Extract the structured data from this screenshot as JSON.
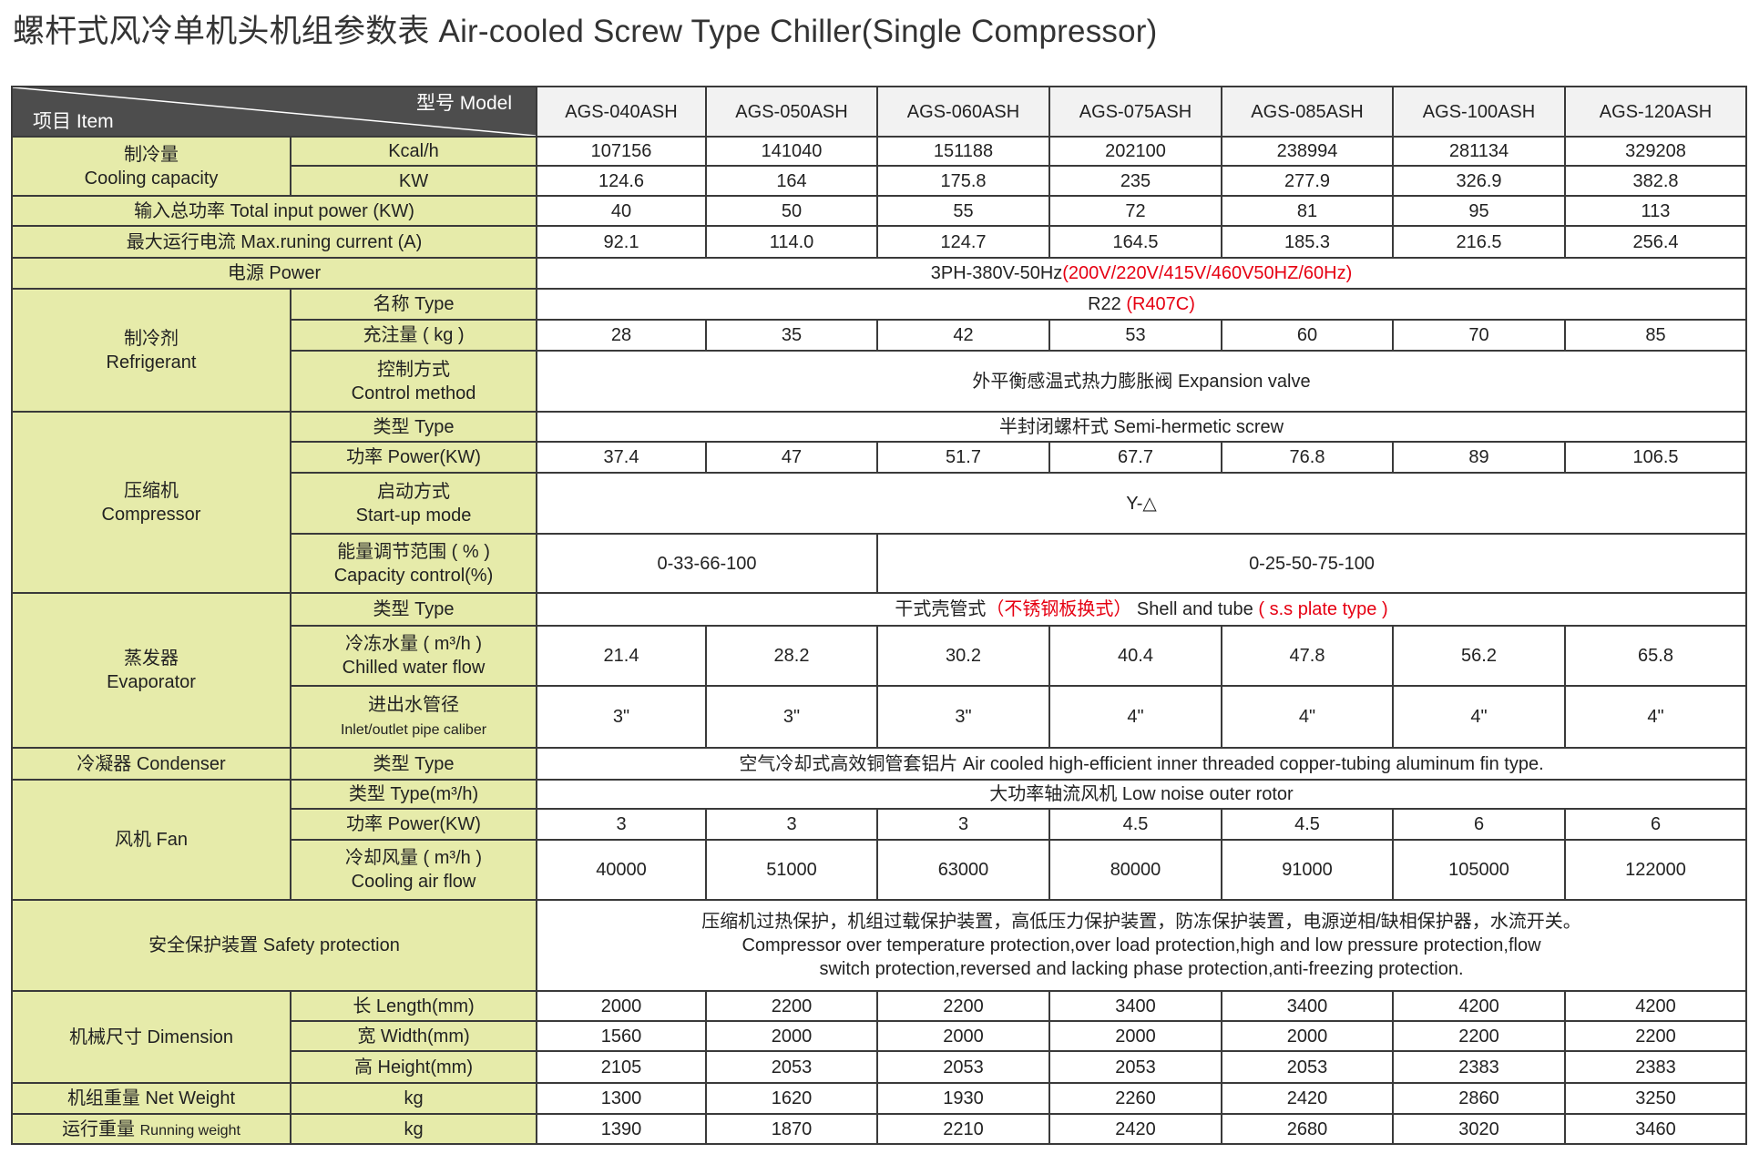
{
  "title": "螺杆式风冷单机头机组参数表 Air-cooled Screw Type Chiller(Single Compressor)",
  "colors": {
    "label_bg": "#e6ebaa",
    "header_bg": "#4d4d4d",
    "highlight": "#e60012"
  },
  "header": {
    "model_label": "型号  Model",
    "item_label": "项目  Item"
  },
  "models": [
    "AGS-040ASH",
    "AGS-050ASH",
    "AGS-060ASH",
    "AGS-075ASH",
    "AGS-085ASH",
    "AGS-100ASH",
    "AGS-120ASH"
  ],
  "sections": [
    {
      "label": "制冷量\nCooling capacity",
      "rows": [
        {
          "param": "Kcal/h",
          "values": [
            "107156",
            "141040",
            "151188",
            "202100",
            "238994",
            "281134",
            "329208"
          ]
        },
        {
          "param": "KW",
          "values": [
            "124.6",
            "164",
            "175.8",
            "235",
            "277.9",
            "326.9",
            "382.8"
          ]
        }
      ]
    },
    {
      "label": "输入总功率  Total input power (KW)",
      "values": [
        "40",
        "50",
        "55",
        "72",
        "81",
        "95",
        "113"
      ]
    },
    {
      "label": "最大运行电流  Max.runing current (A)",
      "values": [
        "92.1",
        "114.0",
        "124.7",
        "164.5",
        "185.3",
        "216.5",
        "256.4"
      ]
    },
    {
      "label": "电源  Power",
      "values": [
        [
          {
            "text": "3PH-380V-50Hz"
          },
          {
            "text": "(200V/220V/415V/460V50HZ/60Hz)",
            "red": true
          }
        ]
      ]
    },
    {
      "label": "制冷剂\nRefrigerant",
      "rows": [
        {
          "param": "名称  Type",
          "values": [
            [
              {
                "text": "R22 "
              },
              {
                "text": "(R407C)",
                "red": true
              }
            ]
          ]
        },
        {
          "param": "充注量 ( kg )",
          "values": [
            "28",
            "35",
            "42",
            "53",
            "60",
            "70",
            "85"
          ]
        },
        {
          "param": "控制方式\nControl method",
          "values": [
            "外平衡感温式热力膨胀阀  Expansion valve"
          ]
        }
      ]
    },
    {
      "label": "压缩机\nCompressor",
      "rows": [
        {
          "param": "类型  Type",
          "values": [
            "半封闭螺杆式  Semi-hermetic screw"
          ]
        },
        {
          "param": "功率  Power(KW)",
          "values": [
            "37.4",
            "47",
            "51.7",
            "67.7",
            "76.8",
            "89",
            "106.5"
          ]
        },
        {
          "param": "启动方式\nStart-up mode",
          "values": [
            "Y-△"
          ]
        },
        {
          "param": "能量调节范围 ( % )\nCapacity control(%)",
          "values": [
            "0-33-66-100",
            "0-25-50-75-100"
          ]
        }
      ]
    },
    {
      "label": "蒸发器\nEvaporator",
      "rows": [
        {
          "param": "类型  Type",
          "values": [
            [
              {
                "text": "干式壳管式"
              },
              {
                "text": "（不锈钢板换式）",
                "red": true
              },
              {
                "text": "  Shell and tube "
              },
              {
                "text": "( s.s plate type )",
                "red": true
              }
            ]
          ]
        },
        {
          "param": "冷冻水量 ( m³/h )\nChilled water flow",
          "values": [
            "21.4",
            "28.2",
            "30.2",
            "40.4",
            "47.8",
            "56.2",
            "65.8"
          ]
        },
        {
          "param": [
            {
              "text": "进出水管径\n"
            },
            {
              "text": "Inlet/outlet pipe caliber",
              "small": true
            }
          ],
          "values": [
            "3\"",
            "3\"",
            "3\"",
            "4\"",
            "4\"",
            "4\"",
            "4\""
          ]
        }
      ]
    },
    {
      "label": "冷凝器  Condenser",
      "rows": [
        {
          "param": "类型  Type",
          "values": [
            "空气冷却式高效铜管套铝片  Air cooled high-efficient inner threaded copper-tubing aluminum fin type."
          ]
        }
      ]
    },
    {
      "label": "风机  Fan",
      "rows": [
        {
          "param": "类型  Type(m³/h)",
          "values": [
            "大功率轴流风机  Low noise outer rotor"
          ]
        },
        {
          "param": "功率  Power(KW)",
          "values": [
            "3",
            "3",
            "3",
            "4.5",
            "4.5",
            "6",
            "6"
          ]
        },
        {
          "param": "冷却风量 ( m³/h )\nCooling air flow",
          "values": [
            "40000",
            "51000",
            "63000",
            "80000",
            "91000",
            "105000",
            "122000"
          ]
        }
      ]
    },
    {
      "label": "安全保护装置  Safety protection",
      "values": [
        "压缩机过热保护，机组过载保护装置，高低压力保护装置，防冻保护装置，电源逆相/缺相保护器，水流开关。\nCompressor over temperature protection,over load protection,high and low pressure protection,flow\nswitch protection,reversed and lacking phase protection,anti-freezing protection."
      ]
    },
    {
      "label": "机械尺寸  Dimension",
      "rows": [
        {
          "param": "长  Length(mm)",
          "values": [
            "2000",
            "2200",
            "2200",
            "3400",
            "3400",
            "4200",
            "4200"
          ]
        },
        {
          "param": "宽  Width(mm)",
          "values": [
            "1560",
            "2000",
            "2000",
            "2000",
            "2000",
            "2200",
            "2200"
          ]
        },
        {
          "param": "高  Height(mm)",
          "values": [
            "2105",
            "2053",
            "2053",
            "2053",
            "2053",
            "2383",
            "2383"
          ]
        }
      ]
    },
    {
      "label": "机组重量  Net Weight",
      "rows": [
        {
          "param": "kg",
          "values": [
            "1300",
            "1620",
            "1930",
            "2260",
            "2420",
            "2860",
            "3250"
          ]
        }
      ]
    },
    {
      "label": [
        {
          "text": "运行重量  "
        },
        {
          "text": "Running weight",
          "small": true
        }
      ],
      "rows": [
        {
          "param": "kg",
          "values": [
            "1390",
            "1870",
            "2210",
            "2420",
            "2680",
            "3020",
            "3460"
          ]
        }
      ]
    }
  ]
}
